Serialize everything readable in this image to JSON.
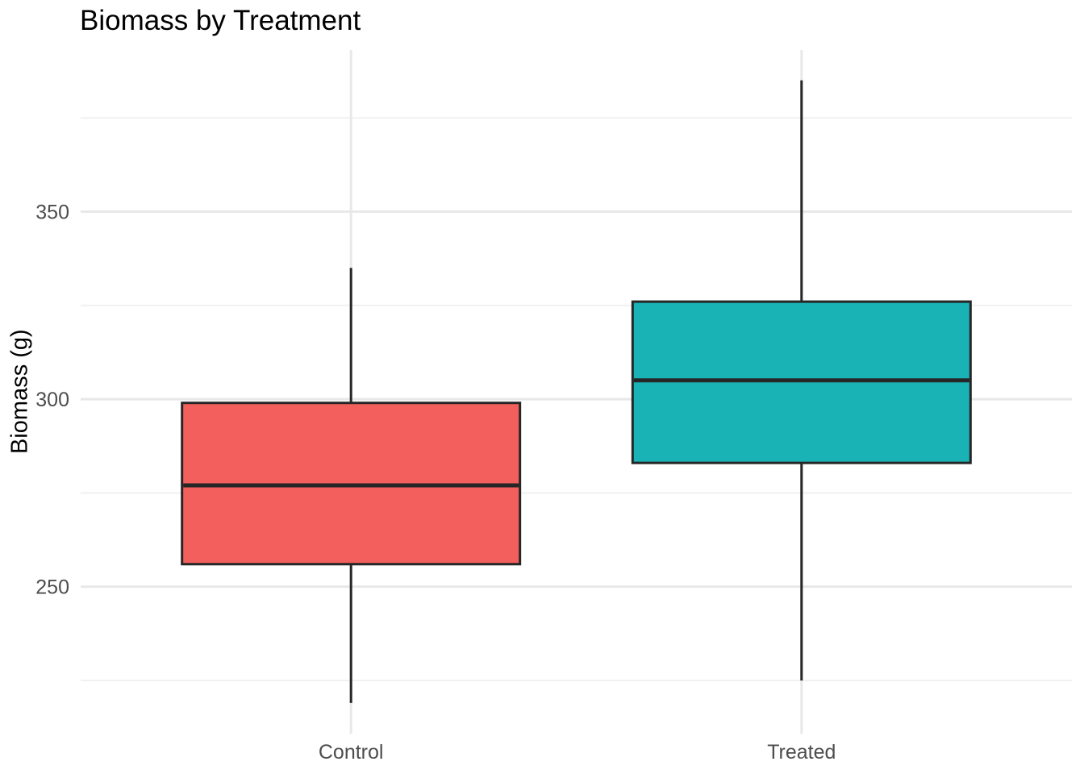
{
  "title": "Biomass by Treatment",
  "colors": {
    "control_fill": "#F25F5C",
    "treated_fill": "#19B3B6",
    "box_stroke": "#262626",
    "grid_major": "#E8E8E8",
    "grid_minor": "#F1F1F1",
    "axis_text": "#4D4D4D",
    "title_text": "#000000"
  },
  "chart_data": {
    "type": "boxplot",
    "title": "Biomass by Treatment",
    "xlabel": "",
    "ylabel": "Biomass (g)",
    "categories": [
      "Control",
      "Treated"
    ],
    "series": [
      {
        "name": "Control",
        "min": 219,
        "q1": 256,
        "median": 277,
        "q3": 299,
        "max": 335,
        "fill": "#F25F5C",
        "outliers": []
      },
      {
        "name": "Treated",
        "min": 225,
        "q1": 283,
        "median": 305,
        "q3": 326,
        "max": 385,
        "fill": "#19B3B6",
        "outliers": []
      }
    ],
    "ylim": [
      210.8,
      393.1
    ],
    "yticks_major": [
      250,
      300,
      350
    ],
    "yticks_minor": [
      225,
      275,
      325,
      375
    ],
    "grid": "horizontal major+minor, vertical major at each category; no panel border; no axis tick marks",
    "legend": "none",
    "box_width_fraction": 0.75
  }
}
